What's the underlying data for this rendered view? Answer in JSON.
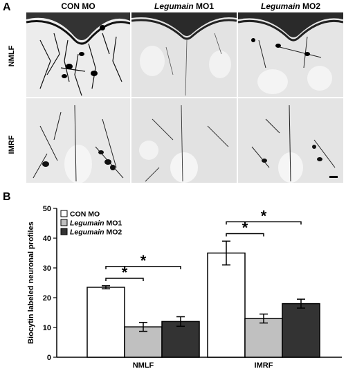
{
  "figure": {
    "panel_a_letter": "A",
    "panel_b_letter": "B",
    "columns": [
      {
        "prefix": "",
        "italic": "",
        "text": "CON MO"
      },
      {
        "prefix": "",
        "italic": "Legumain",
        "text": " MO1"
      },
      {
        "prefix": "",
        "italic": "Legumain",
        "text": " MO2"
      }
    ],
    "rows": [
      "NMLF",
      "IMRF"
    ]
  },
  "chart_data": {
    "type": "bar",
    "categories": [
      "NMLF",
      "IMRF"
    ],
    "series": [
      {
        "name": "CON MO",
        "italic": "",
        "suffix": "CON MO",
        "color": "#ffffff",
        "values": [
          23.5,
          35.0
        ],
        "errors": [
          0.5,
          4.0
        ]
      },
      {
        "name": "Legumain MO1",
        "italic": "Legumain",
        "suffix": " MO1",
        "color": "#c0c0c0",
        "values": [
          10.2,
          13.0
        ],
        "errors": [
          1.5,
          1.5
        ]
      },
      {
        "name": "Legumain MO2",
        "italic": "Legumain",
        "suffix": " MO2",
        "color": "#333333",
        "values": [
          12.0,
          18.0
        ],
        "errors": [
          1.6,
          1.5
        ]
      }
    ],
    "ylabel": "Biocytin labeled neuronal profiles",
    "ylim": [
      0,
      50
    ],
    "yticks": [
      0,
      10,
      20,
      30,
      40,
      50
    ],
    "significance": [
      {
        "category": 0,
        "from": 0,
        "to": 1,
        "label": "*"
      },
      {
        "category": 0,
        "from": 0,
        "to": 2,
        "label": "*"
      },
      {
        "category": 1,
        "from": 0,
        "to": 1,
        "label": "*"
      },
      {
        "category": 1,
        "from": 0,
        "to": 2,
        "label": "*"
      }
    ],
    "legend_position": "top-left"
  }
}
